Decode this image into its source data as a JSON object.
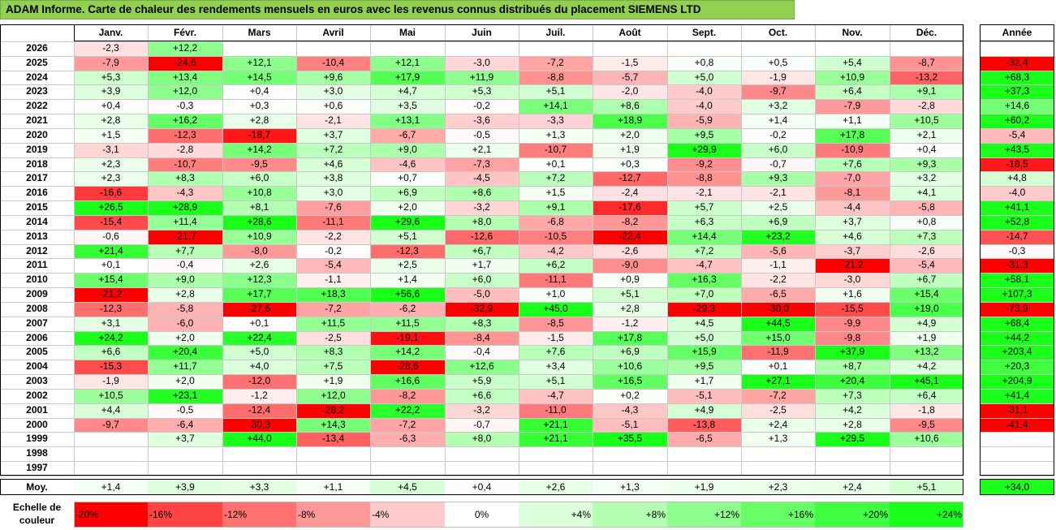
{
  "title": "ADAM Informe. Carte de chaleur des rendements mensuels en euros avec les revenus connus distribués du placement SIEMENS LTD",
  "chart_data": {
    "type": "heatmap",
    "title": "ADAM Informe. Carte de chaleur des rendements mensuels en euros avec les revenus connus distribués du placement SIEMENS LTD",
    "months": [
      "Janv.",
      "Févr.",
      "Mars",
      "Avril",
      "Mai",
      "Juin",
      "Juil.",
      "Août",
      "Sept.",
      "Oct.",
      "Nov.",
      "Déc."
    ],
    "year_header": "Année",
    "rows": [
      {
        "year": "2026",
        "values": [
          "-2,3",
          "+12,2",
          "",
          "",
          "",
          "",
          "",
          "",
          "",
          "",
          "",
          ""
        ],
        "annual": ""
      },
      {
        "year": "2025",
        "values": [
          "-7,9",
          "-24,6",
          "+12,1",
          "-10,4",
          "+12,1",
          "-3,0",
          "-7,2",
          "-1,5",
          "+0,8",
          "+0,5",
          "+5,4",
          "-8,7"
        ],
        "annual": "-32,4"
      },
      {
        "year": "2024",
        "values": [
          "+5,3",
          "+13,4",
          "+14,5",
          "+9,6",
          "+17,9",
          "+11,9",
          "-8,8",
          "-5,7",
          "+5,0",
          "-1,9",
          "+10,9",
          "-13,2"
        ],
        "annual": "+68,3"
      },
      {
        "year": "2023",
        "values": [
          "+3,9",
          "+12,0",
          "+0,4",
          "+3,0",
          "+4,7",
          "+5,3",
          "+5,1",
          "-2,0",
          "-4,0",
          "-9,7",
          "+6,4",
          "+9,1"
        ],
        "annual": "+37,3"
      },
      {
        "year": "2022",
        "values": [
          "+0,4",
          "-0,3",
          "+0,3",
          "+0,6",
          "+3,5",
          "-0,2",
          "+14,1",
          "+8,6",
          "-4,0",
          "+3,2",
          "-7,9",
          "-2,8"
        ],
        "annual": "+14,6"
      },
      {
        "year": "2021",
        "values": [
          "+2,8",
          "+16,2",
          "+2,8",
          "-2,1",
          "+13,1",
          "-3,6",
          "-3,3",
          "+18,9",
          "-5,9",
          "+1,4",
          "+1,1",
          "+10,5"
        ],
        "annual": "+60,2"
      },
      {
        "year": "2020",
        "values": [
          "+1,5",
          "-12,3",
          "-18,7",
          "+3,7",
          "-6,7",
          "-0,5",
          "+1,3",
          "+2,0",
          "+9,5",
          "-0,2",
          "+17,8",
          "+2,1"
        ],
        "annual": "-5,4"
      },
      {
        "year": "2019",
        "values": [
          "-3,1",
          "-2,8",
          "+14,2",
          "+7,2",
          "+9,0",
          "+2,1",
          "-10,7",
          "+1,9",
          "+29,9",
          "+6,0",
          "-10,9",
          "+0,4"
        ],
        "annual": "+43,5"
      },
      {
        "year": "2018",
        "values": [
          "+2,3",
          "-10,7",
          "-9,5",
          "+4,6",
          "-4,6",
          "-7,3",
          "+0,1",
          "+0,3",
          "-9,2",
          "-0,7",
          "+7,6",
          "+9,3"
        ],
        "annual": "-18,5"
      },
      {
        "year": "2017",
        "values": [
          "+2,3",
          "+8,3",
          "+6,0",
          "+3,8",
          "+0,7",
          "-4,5",
          "+7,2",
          "-12,7",
          "-8,8",
          "+9,3",
          "-7,0",
          "+3,2"
        ],
        "annual": "+4,8"
      },
      {
        "year": "2016",
        "values": [
          "-16,6",
          "-4,3",
          "+10,8",
          "+3,0",
          "+6,9",
          "+8,6",
          "+1,5",
          "-2,4",
          "-2,1",
          "-2,1",
          "-8,1",
          "+4,1"
        ],
        "annual": "-4,0"
      },
      {
        "year": "2015",
        "values": [
          "+26,5",
          "+28,9",
          "+8,1",
          "-7,6",
          "+2,0",
          "-3,2",
          "+9,1",
          "-17,6",
          "+5,7",
          "+2,5",
          "-4,4",
          "-5,8"
        ],
        "annual": "+41,1"
      },
      {
        "year": "2014",
        "values": [
          "-15,4",
          "+11,4",
          "+28,6",
          "-11,1",
          "+29,6",
          "+8,0",
          "-6,8",
          "-8,2",
          "+6,3",
          "+6,9",
          "+3,7",
          "+0,8"
        ],
        "annual": "+52,8"
      },
      {
        "year": "2013",
        "values": [
          "-0,6",
          "-21,7",
          "+10,9",
          "-2,2",
          "+5,1",
          "-12,6",
          "-10,5",
          "-22,4",
          "+14,4",
          "+23,2",
          "+4,6",
          "+7,3"
        ],
        "annual": "-14,7"
      },
      {
        "year": "2012",
        "values": [
          "+21,4",
          "+7,7",
          "-8,0",
          "-0,2",
          "-12,3",
          "+6,7",
          "-4,2",
          "-2,6",
          "+7,2",
          "-5,6",
          "-3,7",
          "-2,6"
        ],
        "annual": "-0,3"
      },
      {
        "year": "2011",
        "values": [
          "+0,1",
          "-0,4",
          "+2,6",
          "-5,4",
          "+2,5",
          "+1,7",
          "+6,2",
          "-9,0",
          "-4,7",
          "-1,1",
          "-21,2",
          "-5,4"
        ],
        "annual": "-31,3"
      },
      {
        "year": "2010",
        "values": [
          "+15,4",
          "+9,0",
          "+12,3",
          "-1,1",
          "+1,4",
          "+6,0",
          "-11,1",
          "+0,9",
          "+16,3",
          "-2,2",
          "-3,0",
          "+6,7"
        ],
        "annual": "+58,1"
      },
      {
        "year": "2009",
        "values": [
          "-21,2",
          "+2,8",
          "+17,7",
          "+18,3",
          "+56,6",
          "-5,0",
          "+1,0",
          "+5,1",
          "+7,0",
          "-6,5",
          "+1,6",
          "+15,4"
        ],
        "annual": "+107,3"
      },
      {
        "year": "2008",
        "values": [
          "-12,3",
          "-5,8",
          "-27,6",
          "-7,2",
          "-6,2",
          "-32,9",
          "+45,0",
          "+2,8",
          "-29,3",
          "-30,0",
          "-15,5",
          "+19,0"
        ],
        "annual": "-73,9"
      },
      {
        "year": "2007",
        "values": [
          "+3,1",
          "-6,0",
          "+0,1",
          "+11,5",
          "+11,5",
          "+8,3",
          "-8,5",
          "-1,2",
          "+4,5",
          "+44,5",
          "-9,9",
          "+4,9"
        ],
        "annual": "+68,4"
      },
      {
        "year": "2006",
        "values": [
          "+24,2",
          "+2,0",
          "+22,4",
          "-2,5",
          "-19,1",
          "-8,4",
          "-1,5",
          "+17,8",
          "+5,0",
          "+15,0",
          "-9,8",
          "+1,9"
        ],
        "annual": "+44,2"
      },
      {
        "year": "2005",
        "values": [
          "+6,6",
          "+20,4",
          "+5,0",
          "+8,3",
          "+14,2",
          "-0,4",
          "+7,6",
          "+6,9",
          "+15,9",
          "-11,9",
          "+37,9",
          "+13,2"
        ],
        "annual": "+203,4"
      },
      {
        "year": "2004",
        "values": [
          "-15,3",
          "+11,7",
          "+4,0",
          "+7,5",
          "-28,6",
          "+12,6",
          "+3,4",
          "+10,6",
          "+9,5",
          "+0,1",
          "+8,7",
          "+4,2"
        ],
        "annual": "+20,3"
      },
      {
        "year": "2003",
        "values": [
          "-1,9",
          "+2,0",
          "-12,0",
          "+1,9",
          "+16,6",
          "+5,9",
          "+5,1",
          "+16,5",
          "+1,7",
          "+27,1",
          "+20,4",
          "+45,1"
        ],
        "annual": "+204,9"
      },
      {
        "year": "2002",
        "values": [
          "+10,5",
          "+23,1",
          "-1,2",
          "+12,0",
          "-8,2",
          "+6,6",
          "-4,7",
          "+0,2",
          "-5,1",
          "-7,2",
          "+7,3",
          "+6,4"
        ],
        "annual": "+41,4"
      },
      {
        "year": "2001",
        "values": [
          "+4,4",
          "-0,5",
          "-12,4",
          "-28,2",
          "+22,2",
          "-3,2",
          "-11,0",
          "-4,3",
          "+4,9",
          "-2,5",
          "+4,2",
          "-1,8"
        ],
        "annual": "-31,1"
      },
      {
        "year": "2000",
        "values": [
          "-9,7",
          "-6,4",
          "-30,3",
          "+14,3",
          "-7,2",
          "-0,7",
          "+21,1",
          "-5,1",
          "-13,8",
          "+2,4",
          "+2,8",
          "-9,5"
        ],
        "annual": "-41,4"
      },
      {
        "year": "1999",
        "values": [
          "",
          "+3,7",
          "+44,0",
          "-13,4",
          "-6,3",
          "+8,0",
          "+21,1",
          "+35,5",
          "-6,5",
          "+1,3",
          "+29,5",
          "+10,6"
        ],
        "annual": ""
      },
      {
        "year": "1998",
        "values": [
          "",
          "",
          "",
          "",
          "",
          "",
          "",
          "",
          "",
          "",
          "",
          ""
        ],
        "annual": ""
      },
      {
        "year": "1997",
        "values": [
          "",
          "",
          "",
          "",
          "",
          "",
          "",
          "",
          "",
          "",
          "",
          ""
        ],
        "annual": ""
      }
    ],
    "average": {
      "label": "Moy.",
      "values": [
        "+1,4",
        "+3,9",
        "+3,3",
        "+1,1",
        "+4,5",
        "+0,4",
        "+2,6",
        "+1,3",
        "+1,9",
        "+2,3",
        "+2,4",
        "+5,1"
      ],
      "annual": "+34,0"
    },
    "scale": {
      "label": "Echelle de couleur",
      "steps": [
        {
          "label": "-20%",
          "value": -20,
          "color": "#ff0000"
        },
        {
          "label": "-16%",
          "value": -16,
          "color": "#ff4444"
        },
        {
          "label": "-12%",
          "value": -12,
          "color": "#ff7070"
        },
        {
          "label": "-8%",
          "value": -8,
          "color": "#ff9999"
        },
        {
          "label": "-4%",
          "value": -4,
          "color": "#ffcaca"
        },
        {
          "label": "0%",
          "value": 0,
          "color": "#ffffff"
        },
        {
          "label": "+4%",
          "value": 4,
          "color": "#dcffdc"
        },
        {
          "label": "+8%",
          "value": 8,
          "color": "#b4ffb4"
        },
        {
          "label": "+12%",
          "value": 12,
          "color": "#8eff8e"
        },
        {
          "label": "+16%",
          "value": 16,
          "color": "#66ff66"
        },
        {
          "label": "+20%",
          "value": 20,
          "color": "#40ff40"
        },
        {
          "label": "+24%",
          "value": 24,
          "color": "#1aff1a"
        }
      ]
    }
  }
}
